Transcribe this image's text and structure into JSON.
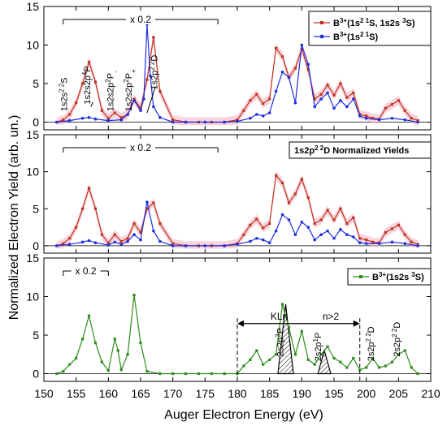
{
  "figure": {
    "xlabel": "Auger Electron Energy (eV)",
    "ylabel": "Normalized Electron Yield (arb. un.)",
    "xlim": [
      150,
      210
    ],
    "xticks": [
      150,
      155,
      160,
      165,
      170,
      175,
      180,
      185,
      190,
      195,
      200,
      205,
      210
    ],
    "panel_ylim": [
      -1,
      15
    ],
    "panel_yticks": [
      0,
      5,
      10,
      15
    ]
  },
  "colors": {
    "red": "#c0321e",
    "blue": "#1f2fe0",
    "green": "#2f8a1e",
    "pink_band": "#f4b8c6"
  },
  "chart_data": [
    {
      "type": "line",
      "ylim": [
        -1,
        15
      ],
      "scale_bracket": {
        "label": "x 0.2",
        "x_range": [
          153,
          177
        ]
      },
      "legend_position": "top-right",
      "series": [
        {
          "name": "B3+(1s2 1S, 1s2s 3S)",
          "color": "#c0321e",
          "x": [
            152,
            153,
            154,
            155,
            156,
            157,
            158,
            159,
            160,
            161,
            162,
            163,
            164,
            165,
            166,
            167,
            168,
            170,
            172,
            174,
            176,
            178,
            180,
            181,
            182,
            183,
            184,
            185,
            186,
            187,
            188,
            189,
            190,
            191,
            192,
            193,
            194,
            195,
            196,
            197,
            198,
            199,
            200,
            201,
            202,
            203,
            204,
            205,
            206,
            207,
            208
          ],
          "values": [
            0,
            0.3,
            1,
            2.5,
            5,
            7.8,
            5.2,
            1.5,
            0.5,
            1.2,
            0.6,
            1,
            3,
            1.8,
            5.5,
            11,
            4,
            0.3,
            0,
            0,
            0,
            0,
            0.3,
            1.5,
            2.8,
            3.6,
            2.4,
            3,
            9.6,
            8.5,
            5.8,
            7,
            9.5,
            6.8,
            3,
            3.6,
            4.8,
            3.5,
            5,
            3.2,
            3.8,
            1,
            0.8,
            0.5,
            0.4,
            1.8,
            2.3,
            2.8,
            1.5,
            0.5,
            0.2
          ]
        },
        {
          "name": "B3+(1s2 1S)",
          "color": "#1f2fe0",
          "x": [
            152,
            154,
            156,
            157,
            158,
            160,
            162,
            163,
            164,
            165,
            165.5,
            166,
            166.5,
            167,
            168,
            170,
            172,
            175,
            178,
            180,
            182,
            183,
            184,
            185,
            186,
            187,
            188,
            189,
            190,
            191,
            192,
            193,
            194,
            195,
            196,
            197,
            198,
            199,
            200,
            202,
            204,
            206,
            208
          ],
          "values": [
            0,
            0.2,
            0.5,
            0.6,
            0.4,
            0.2,
            0.3,
            1,
            2.8,
            1.5,
            3,
            12.7,
            6,
            2,
            0.6,
            0,
            0,
            0,
            0,
            0.1,
            0.5,
            1,
            0.8,
            1.2,
            4,
            6.5,
            5.8,
            2.5,
            10,
            7.5,
            2,
            3,
            3.8,
            1.8,
            2.8,
            2,
            3,
            0.8,
            0.5,
            0.3,
            0.5,
            0.3,
            0
          ]
        }
      ],
      "labels": [
        {
          "text": "1s2s",
          "sup": "2 2",
          "after": "S",
          "x": 153.6,
          "y": 1.4
        },
        {
          "text": "1s2s2p",
          "sup": "4",
          "after": "P",
          "x": 157.2,
          "y": 2.3
        },
        {
          "text": "1s2s2p",
          "sup": "2",
          "after": "P",
          "sub": "-",
          "x": 160.8,
          "y": 1.4
        },
        {
          "text": "1s2s2p",
          "sup": "2",
          "after": "P",
          "sub": "+",
          "x": 163.6,
          "y": 1.4
        },
        {
          "text": "1s2p",
          "sup": "2 2",
          "after": "D",
          "x": 167.6,
          "y": 4.2
        }
      ]
    },
    {
      "type": "line",
      "ylim": [
        -1,
        15
      ],
      "scale_bracket": {
        "label": "x 0.2",
        "x_range": [
          153,
          177
        ]
      },
      "legend_box": "1s2p 2 2D  Normalized Yields",
      "series": [
        {
          "name": "",
          "color": "#c0321e",
          "x": [
            152,
            153,
            154,
            155,
            156,
            157,
            158,
            159,
            160,
            161,
            162,
            163,
            164,
            165,
            166,
            167,
            168,
            170,
            172,
            174,
            176,
            178,
            180,
            181,
            182,
            183,
            184,
            185,
            186,
            187,
            188,
            189,
            190,
            191,
            192,
            193,
            194,
            195,
            196,
            197,
            198,
            199,
            200,
            201,
            202,
            203,
            204,
            205,
            206,
            207,
            208
          ],
          "values": [
            0,
            0.3,
            1,
            2.5,
            5,
            7.8,
            5,
            1.5,
            0.4,
            1.5,
            0.6,
            1,
            3,
            1.8,
            5,
            5.8,
            3,
            0.3,
            0,
            0,
            0,
            0,
            0.3,
            1.5,
            2.8,
            3.6,
            2.4,
            3,
            9.5,
            8.5,
            5.8,
            7,
            9,
            6.5,
            3,
            3.5,
            4.8,
            3.5,
            5,
            3,
            3.8,
            1,
            0.8,
            0.5,
            0.4,
            1.8,
            2.3,
            2.8,
            1.5,
            0.5,
            0.2
          ]
        },
        {
          "name": "",
          "color": "#1f2fe0",
          "x": [
            152,
            154,
            156,
            157,
            158,
            160,
            161,
            162,
            163,
            164,
            165,
            166,
            167,
            168,
            170,
            172,
            175,
            178,
            180,
            182,
            183,
            184,
            185,
            186,
            187,
            188,
            189,
            190,
            191,
            192,
            193,
            194,
            195,
            196,
            197,
            198,
            199,
            200,
            202,
            204,
            206,
            208
          ],
          "values": [
            0,
            0.2,
            0.5,
            0.7,
            0.4,
            0.1,
            0.5,
            0.2,
            0.6,
            1.5,
            0.8,
            5.9,
            2,
            0.6,
            0,
            0,
            0,
            0,
            0.2,
            0.6,
            1,
            0.8,
            0.4,
            2,
            4.2,
            3.5,
            1.5,
            3.2,
            2.5,
            0.8,
            1.5,
            2,
            1,
            2.2,
            1.5,
            1.2,
            0.4,
            0.3,
            0.3,
            0.5,
            0.3,
            0
          ]
        }
      ]
    },
    {
      "type": "line",
      "ylim": [
        -1,
        15
      ],
      "scale_bracket": {
        "label": "x 0.2",
        "x_range": [
          153,
          160
        ]
      },
      "legend_position": "top-right",
      "series": [
        {
          "name": "B3+(1s2s 3S)",
          "color": "#2f8a1e",
          "x": [
            152,
            153,
            154,
            155,
            156,
            157,
            158,
            159,
            160,
            161,
            161.5,
            162,
            163,
            164,
            165,
            166,
            168,
            170,
            172,
            174,
            176,
            178,
            180,
            181,
            182,
            183,
            184,
            185,
            186,
            187,
            188,
            189,
            190,
            191,
            192,
            193,
            194,
            195,
            196,
            197,
            198,
            199,
            200,
            201,
            202,
            203,
            204,
            205,
            206,
            207,
            208
          ],
          "values": [
            0,
            0.3,
            1.2,
            2,
            4.5,
            7.5,
            4,
            1.5,
            0.4,
            4.5,
            3,
            0.5,
            2.5,
            10.2,
            4,
            0.3,
            0,
            0,
            0,
            0,
            0,
            0,
            0,
            1,
            1.8,
            3,
            1.2,
            1.8,
            2.5,
            9,
            6,
            2.5,
            5.5,
            1.8,
            1.2,
            2.5,
            3.5,
            2,
            1.5,
            0.8,
            2,
            0.5,
            0.8,
            2,
            0.8,
            1,
            1.5,
            2.5,
            3,
            0.8,
            0
          ]
        }
      ],
      "klnn": {
        "label_a": "KLn",
        "label_b": "n>2",
        "x_range": [
          180,
          199
        ]
      },
      "peaks": [
        {
          "label": "2s2p",
          "sup": "3",
          "after": "P",
          "center": 187.5,
          "height": 9.0,
          "halfwidth": 1.2
        },
        {
          "label": "2s2p",
          "sup": "1",
          "after": "P",
          "center": 193.5,
          "height": 3.0,
          "halfwidth": 1.0
        }
      ],
      "labels": [
        {
          "text": "2s2p",
          "sup": "3",
          "after": "P",
          "x": 187.1,
          "y": 2.2
        },
        {
          "text": "2s2p",
          "sup": "1",
          "after": "P",
          "x": 193.0,
          "y": 1.6
        },
        {
          "text": "2s2p",
          "sup": "2 2",
          "after": "D",
          "x": 201.2,
          "y": 1.6
        },
        {
          "text": "2s2p",
          "sup": "2 2",
          "after": "D",
          "x": 205.2,
          "y": 2.2
        }
      ]
    }
  ]
}
